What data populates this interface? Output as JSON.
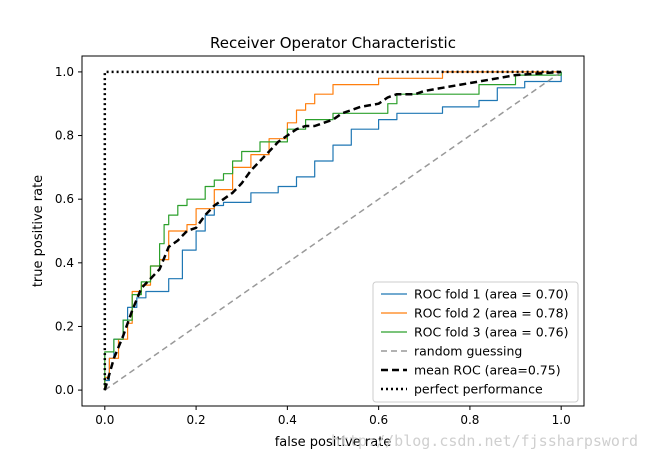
{
  "chart_data": {
    "type": "line",
    "title": "Receiver Operator Characteristic",
    "xlabel": "false positive rate",
    "ylabel": "true positive rate",
    "xlim": [
      -0.05,
      1.05
    ],
    "ylim": [
      -0.05,
      1.05
    ],
    "xticks": [
      0.0,
      0.2,
      0.4,
      0.6,
      0.8,
      1.0
    ],
    "yticks": [
      0.0,
      0.2,
      0.4,
      0.6,
      0.8,
      1.0
    ],
    "xtick_labels": [
      "0.0",
      "0.2",
      "0.4",
      "0.6",
      "0.8",
      "1.0"
    ],
    "ytick_labels": [
      "0.0",
      "0.2",
      "0.4",
      "0.6",
      "0.8",
      "1.0"
    ],
    "grid": false,
    "legend_position": "bottom-right",
    "series": [
      {
        "name": "ROC fold 1 (area = 0.70)",
        "color": "#1f77b4",
        "style": "solid",
        "points": [
          [
            0,
            0
          ],
          [
            0,
            0.03
          ],
          [
            0.01,
            0.03
          ],
          [
            0.01,
            0.1
          ],
          [
            0.02,
            0.1
          ],
          [
            0.02,
            0.16
          ],
          [
            0.04,
            0.16
          ],
          [
            0.04,
            0.22
          ],
          [
            0.05,
            0.22
          ],
          [
            0.05,
            0.26
          ],
          [
            0.07,
            0.26
          ],
          [
            0.07,
            0.29
          ],
          [
            0.09,
            0.29
          ],
          [
            0.09,
            0.31
          ],
          [
            0.14,
            0.31
          ],
          [
            0.14,
            0.35
          ],
          [
            0.17,
            0.35
          ],
          [
            0.17,
            0.44
          ],
          [
            0.2,
            0.44
          ],
          [
            0.2,
            0.5
          ],
          [
            0.22,
            0.5
          ],
          [
            0.22,
            0.55
          ],
          [
            0.24,
            0.55
          ],
          [
            0.24,
            0.58
          ],
          [
            0.26,
            0.58
          ],
          [
            0.26,
            0.59
          ],
          [
            0.32,
            0.59
          ],
          [
            0.32,
            0.62
          ],
          [
            0.38,
            0.62
          ],
          [
            0.38,
            0.64
          ],
          [
            0.42,
            0.64
          ],
          [
            0.42,
            0.67
          ],
          [
            0.46,
            0.67
          ],
          [
            0.46,
            0.72
          ],
          [
            0.5,
            0.72
          ],
          [
            0.5,
            0.77
          ],
          [
            0.54,
            0.77
          ],
          [
            0.54,
            0.82
          ],
          [
            0.6,
            0.82
          ],
          [
            0.6,
            0.85
          ],
          [
            0.64,
            0.85
          ],
          [
            0.64,
            0.87
          ],
          [
            0.74,
            0.87
          ],
          [
            0.74,
            0.89
          ],
          [
            0.82,
            0.89
          ],
          [
            0.82,
            0.91
          ],
          [
            0.86,
            0.91
          ],
          [
            0.86,
            0.95
          ],
          [
            0.92,
            0.95
          ],
          [
            0.92,
            0.97
          ],
          [
            1.0,
            0.97
          ],
          [
            1.0,
            1.0
          ]
        ]
      },
      {
        "name": "ROC fold 2 (area = 0.78)",
        "color": "#ff7f0e",
        "style": "solid",
        "points": [
          [
            0,
            0
          ],
          [
            0,
            0.04
          ],
          [
            0.01,
            0.04
          ],
          [
            0.01,
            0.1
          ],
          [
            0.03,
            0.1
          ],
          [
            0.03,
            0.16
          ],
          [
            0.05,
            0.16
          ],
          [
            0.05,
            0.21
          ],
          [
            0.06,
            0.21
          ],
          [
            0.06,
            0.31
          ],
          [
            0.08,
            0.31
          ],
          [
            0.08,
            0.33
          ],
          [
            0.1,
            0.33
          ],
          [
            0.1,
            0.39
          ],
          [
            0.12,
            0.39
          ],
          [
            0.12,
            0.41
          ],
          [
            0.14,
            0.41
          ],
          [
            0.14,
            0.5
          ],
          [
            0.18,
            0.5
          ],
          [
            0.18,
            0.52
          ],
          [
            0.2,
            0.52
          ],
          [
            0.2,
            0.57
          ],
          [
            0.24,
            0.57
          ],
          [
            0.24,
            0.63
          ],
          [
            0.28,
            0.63
          ],
          [
            0.28,
            0.7
          ],
          [
            0.32,
            0.7
          ],
          [
            0.32,
            0.74
          ],
          [
            0.36,
            0.74
          ],
          [
            0.36,
            0.79
          ],
          [
            0.4,
            0.79
          ],
          [
            0.4,
            0.84
          ],
          [
            0.42,
            0.84
          ],
          [
            0.42,
            0.88
          ],
          [
            0.44,
            0.88
          ],
          [
            0.44,
            0.9
          ],
          [
            0.46,
            0.9
          ],
          [
            0.46,
            0.93
          ],
          [
            0.5,
            0.93
          ],
          [
            0.5,
            0.96
          ],
          [
            0.6,
            0.96
          ],
          [
            0.6,
            0.98
          ],
          [
            0.74,
            0.98
          ],
          [
            0.74,
            1.0
          ],
          [
            1.0,
            1.0
          ]
        ]
      },
      {
        "name": "ROC fold 3 (area = 0.76)",
        "color": "#2ca02c",
        "style": "solid",
        "points": [
          [
            0,
            0
          ],
          [
            0,
            0.12
          ],
          [
            0.02,
            0.12
          ],
          [
            0.02,
            0.16
          ],
          [
            0.04,
            0.16
          ],
          [
            0.04,
            0.22
          ],
          [
            0.06,
            0.22
          ],
          [
            0.06,
            0.3
          ],
          [
            0.08,
            0.3
          ],
          [
            0.08,
            0.34
          ],
          [
            0.1,
            0.34
          ],
          [
            0.1,
            0.39
          ],
          [
            0.12,
            0.39
          ],
          [
            0.12,
            0.46
          ],
          [
            0.13,
            0.46
          ],
          [
            0.13,
            0.52
          ],
          [
            0.14,
            0.52
          ],
          [
            0.14,
            0.55
          ],
          [
            0.16,
            0.55
          ],
          [
            0.16,
            0.58
          ],
          [
            0.18,
            0.58
          ],
          [
            0.18,
            0.6
          ],
          [
            0.22,
            0.6
          ],
          [
            0.22,
            0.64
          ],
          [
            0.24,
            0.64
          ],
          [
            0.24,
            0.66
          ],
          [
            0.26,
            0.66
          ],
          [
            0.26,
            0.68
          ],
          [
            0.28,
            0.68
          ],
          [
            0.28,
            0.72
          ],
          [
            0.3,
            0.72
          ],
          [
            0.3,
            0.75
          ],
          [
            0.34,
            0.75
          ],
          [
            0.34,
            0.78
          ],
          [
            0.4,
            0.78
          ],
          [
            0.4,
            0.82
          ],
          [
            0.44,
            0.82
          ],
          [
            0.44,
            0.85
          ],
          [
            0.5,
            0.85
          ],
          [
            0.5,
            0.87
          ],
          [
            0.62,
            0.87
          ],
          [
            0.62,
            0.9
          ],
          [
            0.64,
            0.9
          ],
          [
            0.64,
            0.93
          ],
          [
            0.82,
            0.93
          ],
          [
            0.82,
            0.96
          ],
          [
            0.9,
            0.96
          ],
          [
            0.9,
            0.99
          ],
          [
            1.0,
            0.99
          ],
          [
            1.0,
            1.0
          ]
        ]
      },
      {
        "name": "random guessing",
        "color": "#999999",
        "style": "dashed",
        "points": [
          [
            0,
            0
          ],
          [
            1,
            1
          ]
        ]
      },
      {
        "name": "mean ROC (area=0.75)",
        "color": "#000000",
        "style": "dashed-thick",
        "points": [
          [
            0,
            0
          ],
          [
            0.02,
            0.1
          ],
          [
            0.04,
            0.17
          ],
          [
            0.06,
            0.25
          ],
          [
            0.08,
            0.32
          ],
          [
            0.1,
            0.35
          ],
          [
            0.12,
            0.38
          ],
          [
            0.14,
            0.45
          ],
          [
            0.16,
            0.47
          ],
          [
            0.18,
            0.5
          ],
          [
            0.2,
            0.51
          ],
          [
            0.22,
            0.55
          ],
          [
            0.24,
            0.58
          ],
          [
            0.26,
            0.6
          ],
          [
            0.28,
            0.62
          ],
          [
            0.3,
            0.65
          ],
          [
            0.32,
            0.69
          ],
          [
            0.34,
            0.72
          ],
          [
            0.36,
            0.75
          ],
          [
            0.38,
            0.78
          ],
          [
            0.4,
            0.8
          ],
          [
            0.42,
            0.82
          ],
          [
            0.44,
            0.83
          ],
          [
            0.46,
            0.83
          ],
          [
            0.5,
            0.85
          ],
          [
            0.52,
            0.87
          ],
          [
            0.54,
            0.88
          ],
          [
            0.56,
            0.89
          ],
          [
            0.6,
            0.9
          ],
          [
            0.62,
            0.92
          ],
          [
            0.64,
            0.93
          ],
          [
            0.68,
            0.93
          ],
          [
            0.7,
            0.94
          ],
          [
            0.74,
            0.95
          ],
          [
            0.78,
            0.96
          ],
          [
            0.82,
            0.97
          ],
          [
            0.86,
            0.98
          ],
          [
            0.9,
            0.99
          ],
          [
            1.0,
            1.0
          ]
        ]
      },
      {
        "name": "perfect performance",
        "color": "#000000",
        "style": "dotted",
        "points": [
          [
            0,
            0
          ],
          [
            0,
            1
          ],
          [
            1,
            1
          ]
        ]
      }
    ]
  },
  "watermark": "http://blog.csdn.net/fjssharpsword"
}
